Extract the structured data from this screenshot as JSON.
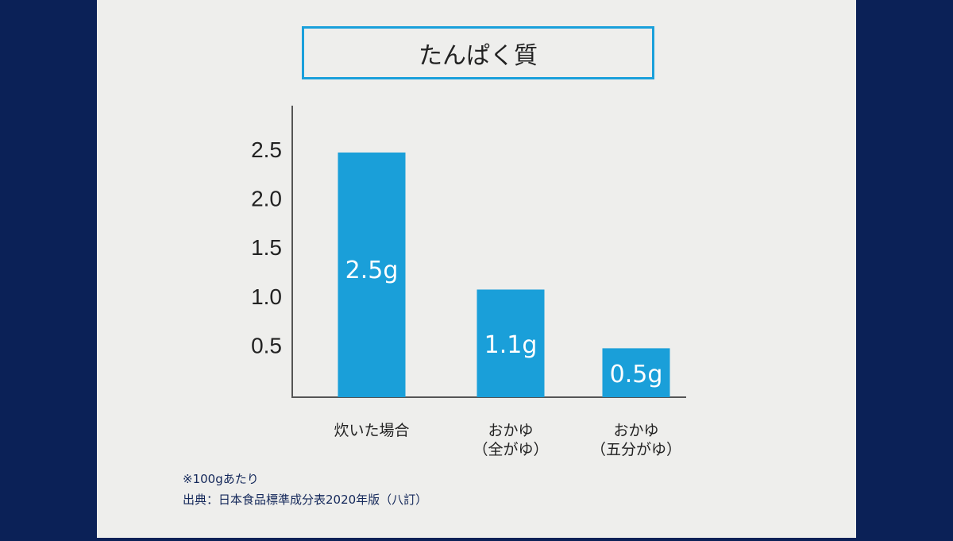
{
  "chart_data": {
    "type": "bar",
    "title": "たんぱく質",
    "categories": [
      [
        "炊いた場合"
      ],
      [
        "おかゆ",
        "（全がゆ）"
      ],
      [
        "おかゆ",
        "（五分がゆ）"
      ]
    ],
    "values": [
      2.5,
      1.1,
      0.5
    ],
    "data_labels": [
      "2.5g",
      "1.1g",
      "0.5g"
    ],
    "yticks": [
      "0.5",
      "1.0",
      "1.5",
      "2.0",
      "2.5"
    ],
    "ylim": [
      0,
      2.5
    ],
    "bar_color": "#1a9fd9",
    "grid": false
  },
  "notes": [
    "※100gあたり",
    "出典：日本食品標準成分表2020年版（八訂）"
  ]
}
